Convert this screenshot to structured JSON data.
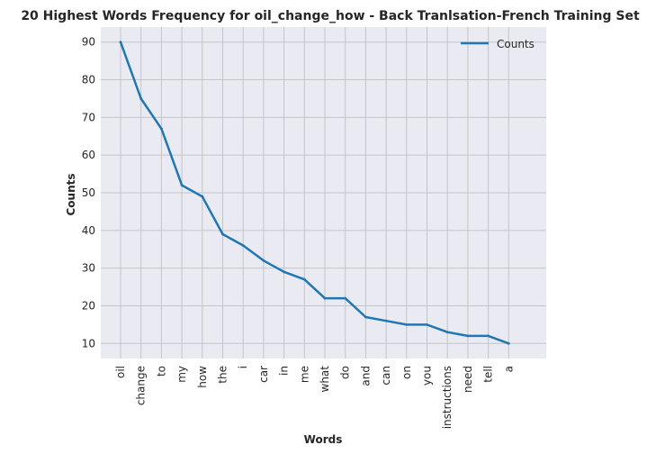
{
  "chart_data": {
    "type": "line",
    "title": "20 Highest Words Frequency for oil_change_how - Back Tranlsation-French Training Set",
    "xlabel": "Words",
    "ylabel": "Counts",
    "categories": [
      "oil",
      "change",
      "to",
      "my",
      "how",
      "the",
      "i",
      "car",
      "in",
      "me",
      "what",
      "do",
      "and",
      "can",
      "on",
      "you",
      "instructions",
      "need",
      "tell",
      "a"
    ],
    "series": [
      {
        "name": "Counts",
        "values": [
          90,
          75,
          67,
          52,
          49,
          39,
          36,
          32,
          29,
          27,
          22,
          22,
          17,
          16,
          15,
          15,
          13,
          12,
          12,
          10
        ],
        "color": "#1f77b4"
      }
    ],
    "yticks": [
      10,
      20,
      30,
      40,
      50,
      60,
      70,
      80,
      90
    ],
    "ylim": [
      6,
      94
    ],
    "grid": true,
    "legend_position": "top-right",
    "background_color": "#eaeaf2",
    "grid_color": "#c4c4c8"
  }
}
